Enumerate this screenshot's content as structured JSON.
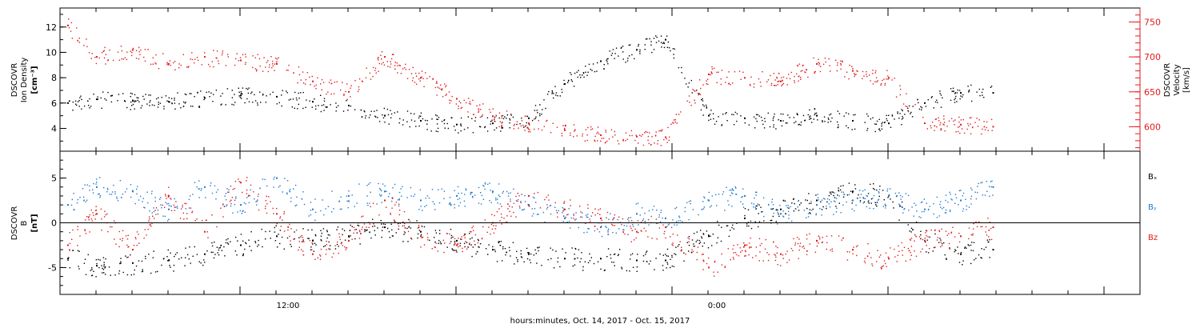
{
  "figure": {
    "xlabel": "hours:minutes, Oct. 14, 2017 - Oct. 15, 2017",
    "x_ticks": [
      "12:00",
      "0:00"
    ]
  },
  "colors": {
    "black": "#000000",
    "red": "#e31a1c",
    "blue": "#1f78d1"
  },
  "chart_data": [
    {
      "type": "scatter",
      "panel": "plasma",
      "ylabel_lines": [
        "DSCOVR",
        "Ion Density"
      ],
      "yunit": "[cm⁻³]",
      "y2label_lines": [
        "DSCOVR",
        "Velocity",
        "[km/s]"
      ],
      "ylim": [
        2.2,
        13.5
      ],
      "y_ticks": [
        4,
        6,
        8,
        10,
        12
      ],
      "y2lim": [
        565,
        770
      ],
      "y2_ticks": [
        600,
        650,
        700,
        750
      ],
      "xlim_hours": [
        -5.0,
        25.0
      ],
      "series": [
        {
          "name": "Ion Density",
          "color": "black",
          "axis": "left",
          "x_hours": [
            -4.8,
            -4.0,
            -3.0,
            -2.0,
            -1.0,
            0.0,
            1.0,
            2.0,
            3.0,
            4.0,
            5.0,
            6.0,
            7.0,
            8.0,
            9.0,
            10.0,
            11.0,
            11.8,
            13.0,
            14.0,
            15.0,
            16.0,
            17.0,
            18.0,
            19.0,
            20.0,
            20.9
          ],
          "values": [
            6.0,
            6.3,
            6.2,
            6.1,
            6.4,
            6.6,
            6.5,
            6.1,
            5.8,
            5.0,
            4.6,
            4.3,
            4.4,
            4.8,
            7.5,
            9.3,
            10.2,
            11.0,
            5.0,
            4.8,
            4.6,
            5.0,
            4.6,
            4.4,
            6.0,
            6.8,
            6.8
          ]
        },
        {
          "name": "Velocity",
          "color": "red",
          "axis": "right",
          "x_hours": [
            -4.8,
            -4.0,
            -3.0,
            -2.0,
            -1.0,
            0.0,
            1.0,
            2.0,
            3.0,
            4.0,
            5.0,
            6.0,
            7.0,
            8.0,
            9.0,
            10.0,
            11.0,
            11.8,
            13.0,
            14.0,
            15.0,
            16.0,
            17.0,
            18.0,
            19.0,
            20.0,
            20.9
          ],
          "values": [
            745,
            700,
            710,
            690,
            700,
            695,
            690,
            665,
            650,
            700,
            670,
            640,
            615,
            605,
            595,
            588,
            586,
            585,
            675,
            670,
            665,
            690,
            680,
            670,
            605,
            603,
            600
          ]
        }
      ]
    },
    {
      "type": "scatter",
      "panel": "magnetic-field",
      "ylabel_lines": [
        "DSCOVR",
        "B"
      ],
      "yunit": "[nT]",
      "ylim": [
        -8.0,
        8.0
      ],
      "y_ticks": [
        -5,
        0,
        5
      ],
      "xlim_hours": [
        -5.0,
        25.0
      ],
      "legend": [
        "Bₓ",
        "Bᵧ",
        "Bz"
      ],
      "legend_colors": [
        "black",
        "blue",
        "red"
      ],
      "series": [
        {
          "name": "Bₓ",
          "color": "black",
          "x_hours": [
            -4.8,
            -4.0,
            -3.0,
            -2.0,
            -1.0,
            0.0,
            1.0,
            2.0,
            3.0,
            4.0,
            5.0,
            6.0,
            7.0,
            8.0,
            9.0,
            10.0,
            11.0,
            11.8,
            13.0,
            14.0,
            15.0,
            16.0,
            17.0,
            18.0,
            19.0,
            20.0,
            20.9
          ],
          "values": [
            -4.0,
            -4.8,
            -4.5,
            -4.2,
            -3.5,
            -2.5,
            -1.5,
            -2.0,
            -1.5,
            -0.5,
            -1.0,
            -2.0,
            -3.0,
            -3.5,
            -4.0,
            -4.0,
            -4.2,
            -4.2,
            -1.5,
            0.5,
            1.5,
            2.5,
            3.5,
            3.0,
            -2.0,
            -3.5,
            -3.0
          ]
        },
        {
          "name": "Bᵧ",
          "color": "blue",
          "x_hours": [
            -4.8,
            -4.0,
            -3.0,
            -2.0,
            -1.0,
            0.0,
            1.0,
            2.0,
            3.0,
            4.0,
            5.0,
            6.0,
            7.0,
            8.0,
            9.0,
            10.0,
            11.0,
            11.8,
            13.0,
            14.0,
            15.0,
            16.0,
            17.0,
            18.0,
            19.0,
            20.0,
            20.9
          ],
          "values": [
            2.0,
            4.0,
            3.5,
            1.5,
            4.0,
            2.0,
            5.0,
            1.5,
            3.0,
            3.5,
            2.5,
            3.0,
            3.5,
            2.0,
            0.5,
            -0.5,
            1.0,
            0.5,
            2.5,
            3.0,
            1.0,
            2.0,
            2.5,
            3.0,
            1.5,
            2.5,
            4.0
          ]
        },
        {
          "name": "Bz",
          "color": "red",
          "x_hours": [
            -4.8,
            -4.0,
            -3.0,
            -2.0,
            -1.0,
            0.0,
            1.0,
            2.0,
            3.0,
            4.0,
            5.0,
            6.0,
            7.0,
            8.0,
            9.0,
            10.0,
            11.0,
            11.8,
            13.0,
            14.0,
            15.0,
            16.0,
            17.0,
            18.0,
            19.0,
            20.0,
            20.9
          ],
          "values": [
            -2.5,
            1.0,
            -3.0,
            3.0,
            -1.0,
            4.5,
            1.0,
            -3.5,
            -2.0,
            2.5,
            -1.5,
            -2.5,
            0.0,
            3.0,
            1.5,
            0.5,
            -1.0,
            -0.5,
            -5.0,
            -2.5,
            -3.5,
            -2.0,
            -3.0,
            -4.0,
            -2.0,
            -1.5,
            -0.5
          ]
        }
      ]
    }
  ]
}
